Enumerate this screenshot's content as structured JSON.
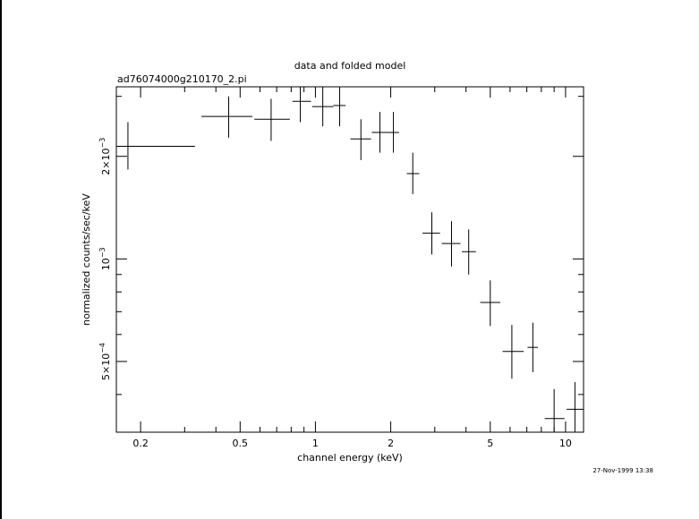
{
  "chart_data": {
    "type": "scatter",
    "title": "data and folded model",
    "subtitle": "ad76074000g210170_2.pi",
    "xlabel": "channel energy (keV)",
    "ylabel": "normalized counts/sec/keV",
    "xscale": "log",
    "yscale": "log",
    "xlim": [
      0.16,
      11.8
    ],
    "ylim": [
      0.00031,
      0.0032
    ],
    "grid": false,
    "legend": "none",
    "timestamp": "27-Nov-1999 13:38",
    "x_major_ticks": [
      {
        "value": 0.2,
        "label": "0.2"
      },
      {
        "value": 0.5,
        "label": "0.5"
      },
      {
        "value": 1,
        "label": "1"
      },
      {
        "value": 2,
        "label": "2"
      },
      {
        "value": 5,
        "label": "5"
      },
      {
        "value": 10,
        "label": "10"
      }
    ],
    "x_minor_ticks": [
      0.3,
      0.4,
      0.6,
      0.7,
      0.8,
      0.9,
      3,
      4,
      6,
      7,
      8,
      9
    ],
    "y_major_ticks": [
      {
        "value": 0.0005,
        "mantissa": "5×10",
        "exponent": "−4"
      },
      {
        "value": 0.001,
        "mantissa": "10",
        "exponent": "−3"
      },
      {
        "value": 0.002,
        "mantissa": "2×10",
        "exponent": "−3"
      }
    ],
    "y_minor_ticks": [
      0.0004,
      0.0006,
      0.0007,
      0.0008,
      0.0009,
      0.003
    ],
    "series": [
      {
        "points": [
          {
            "x": 0.178,
            "y": 0.00214,
            "xlo": 0.16,
            "xhi": 0.33,
            "ylo": 0.00183,
            "yhi": 0.00252
          },
          {
            "x": 0.45,
            "y": 0.00262,
            "xlo": 0.35,
            "xhi": 0.56,
            "ylo": 0.00227,
            "yhi": 0.003
          },
          {
            "x": 0.665,
            "y": 0.00257,
            "xlo": 0.57,
            "xhi": 0.79,
            "ylo": 0.00222,
            "yhi": 0.00295
          },
          {
            "x": 0.87,
            "y": 0.0029,
            "xlo": 0.81,
            "xhi": 0.96,
            "ylo": 0.00252,
            "yhi": 0.0033
          },
          {
            "x": 1.07,
            "y": 0.0028,
            "xlo": 0.97,
            "xhi": 1.18,
            "ylo": 0.00245,
            "yhi": 0.0032
          },
          {
            "x": 1.25,
            "y": 0.00282,
            "xlo": 1.18,
            "xhi": 1.32,
            "ylo": 0.00245,
            "yhi": 0.00325
          },
          {
            "x": 1.52,
            "y": 0.00225,
            "xlo": 1.38,
            "xhi": 1.67,
            "ylo": 0.00195,
            "yhi": 0.00257
          },
          {
            "x": 1.81,
            "y": 0.00235,
            "xlo": 1.68,
            "xhi": 1.95,
            "ylo": 0.00205,
            "yhi": 0.0027
          },
          {
            "x": 2.05,
            "y": 0.00235,
            "xlo": 1.95,
            "xhi": 2.16,
            "ylo": 0.00205,
            "yhi": 0.0027
          },
          {
            "x": 2.45,
            "y": 0.00178,
            "xlo": 2.32,
            "xhi": 2.6,
            "ylo": 0.00155,
            "yhi": 0.00205
          },
          {
            "x": 2.92,
            "y": 0.00119,
            "xlo": 2.68,
            "xhi": 3.15,
            "ylo": 0.00103,
            "yhi": 0.00137
          },
          {
            "x": 3.5,
            "y": 0.00111,
            "xlo": 3.2,
            "xhi": 3.8,
            "ylo": 0.00095,
            "yhi": 0.00129
          },
          {
            "x": 4.1,
            "y": 0.00105,
            "xlo": 3.85,
            "xhi": 4.38,
            "ylo": 0.0009,
            "yhi": 0.00122
          },
          {
            "x": 5.0,
            "y": 0.000745,
            "xlo": 4.56,
            "xhi": 5.48,
            "ylo": 0.000635,
            "yhi": 0.000865
          },
          {
            "x": 6.1,
            "y": 0.000535,
            "xlo": 5.6,
            "xhi": 6.8,
            "ylo": 0.000445,
            "yhi": 0.00064
          },
          {
            "x": 7.4,
            "y": 0.00055,
            "xlo": 7.05,
            "xhi": 7.75,
            "ylo": 0.000465,
            "yhi": 0.00065
          },
          {
            "x": 9.0,
            "y": 0.00034,
            "xlo": 8.25,
            "xhi": 9.9,
            "ylo": 0.00028,
            "yhi": 0.000415
          },
          {
            "x": 10.9,
            "y": 0.000362,
            "xlo": 10.1,
            "xhi": 11.8,
            "ylo": 0.0003,
            "yhi": 0.000435
          }
        ]
      }
    ]
  }
}
